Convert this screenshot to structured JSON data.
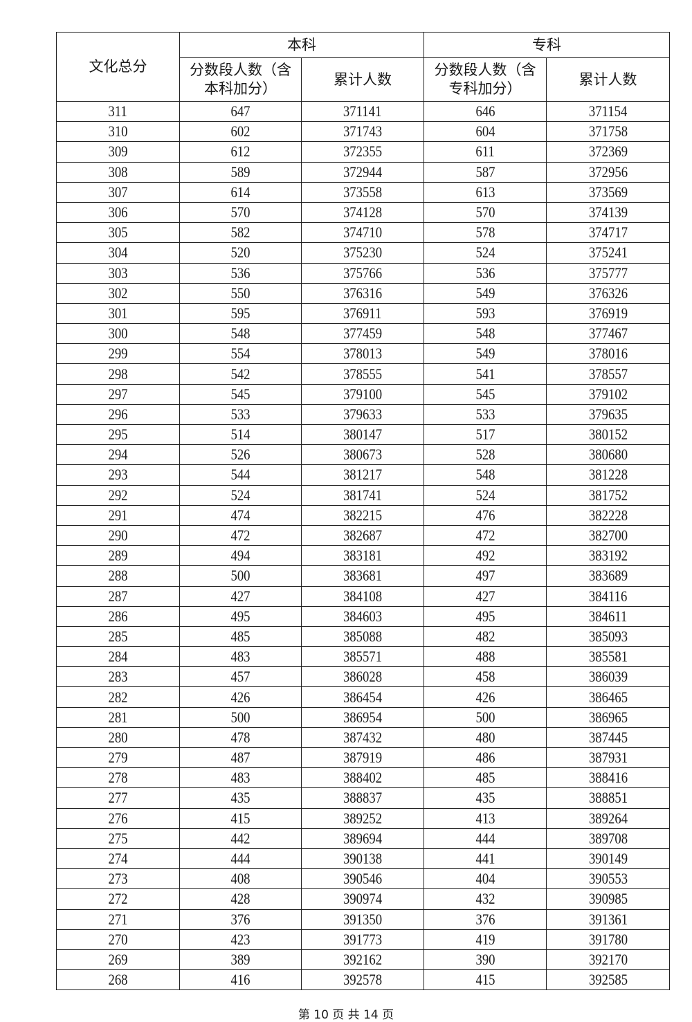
{
  "header": {
    "score_col": "文化总分",
    "group_undergrad": "本科",
    "group_junior": "专科",
    "undergrad_segment": "分数段人数（含本科加分）",
    "undergrad_cumulative": "累计人数",
    "junior_segment": "分数段人数（含专科加分）",
    "junior_cumulative": "累计人数"
  },
  "rows": [
    [
      "311",
      "647",
      "371141",
      "646",
      "371154"
    ],
    [
      "310",
      "602",
      "371743",
      "604",
      "371758"
    ],
    [
      "309",
      "612",
      "372355",
      "611",
      "372369"
    ],
    [
      "308",
      "589",
      "372944",
      "587",
      "372956"
    ],
    [
      "307",
      "614",
      "373558",
      "613",
      "373569"
    ],
    [
      "306",
      "570",
      "374128",
      "570",
      "374139"
    ],
    [
      "305",
      "582",
      "374710",
      "578",
      "374717"
    ],
    [
      "304",
      "520",
      "375230",
      "524",
      "375241"
    ],
    [
      "303",
      "536",
      "375766",
      "536",
      "375777"
    ],
    [
      "302",
      "550",
      "376316",
      "549",
      "376326"
    ],
    [
      "301",
      "595",
      "376911",
      "593",
      "376919"
    ],
    [
      "300",
      "548",
      "377459",
      "548",
      "377467"
    ],
    [
      "299",
      "554",
      "378013",
      "549",
      "378016"
    ],
    [
      "298",
      "542",
      "378555",
      "541",
      "378557"
    ],
    [
      "297",
      "545",
      "379100",
      "545",
      "379102"
    ],
    [
      "296",
      "533",
      "379633",
      "533",
      "379635"
    ],
    [
      "295",
      "514",
      "380147",
      "517",
      "380152"
    ],
    [
      "294",
      "526",
      "380673",
      "528",
      "380680"
    ],
    [
      "293",
      "544",
      "381217",
      "548",
      "381228"
    ],
    [
      "292",
      "524",
      "381741",
      "524",
      "381752"
    ],
    [
      "291",
      "474",
      "382215",
      "476",
      "382228"
    ],
    [
      "290",
      "472",
      "382687",
      "472",
      "382700"
    ],
    [
      "289",
      "494",
      "383181",
      "492",
      "383192"
    ],
    [
      "288",
      "500",
      "383681",
      "497",
      "383689"
    ],
    [
      "287",
      "427",
      "384108",
      "427",
      "384116"
    ],
    [
      "286",
      "495",
      "384603",
      "495",
      "384611"
    ],
    [
      "285",
      "485",
      "385088",
      "482",
      "385093"
    ],
    [
      "284",
      "483",
      "385571",
      "488",
      "385581"
    ],
    [
      "283",
      "457",
      "386028",
      "458",
      "386039"
    ],
    [
      "282",
      "426",
      "386454",
      "426",
      "386465"
    ],
    [
      "281",
      "500",
      "386954",
      "500",
      "386965"
    ],
    [
      "280",
      "478",
      "387432",
      "480",
      "387445"
    ],
    [
      "279",
      "487",
      "387919",
      "486",
      "387931"
    ],
    [
      "278",
      "483",
      "388402",
      "485",
      "388416"
    ],
    [
      "277",
      "435",
      "388837",
      "435",
      "388851"
    ],
    [
      "276",
      "415",
      "389252",
      "413",
      "389264"
    ],
    [
      "275",
      "442",
      "389694",
      "444",
      "389708"
    ],
    [
      "274",
      "444",
      "390138",
      "441",
      "390149"
    ],
    [
      "273",
      "408",
      "390546",
      "404",
      "390553"
    ],
    [
      "272",
      "428",
      "390974",
      "432",
      "390985"
    ],
    [
      "271",
      "376",
      "391350",
      "376",
      "391361"
    ],
    [
      "270",
      "423",
      "391773",
      "419",
      "391780"
    ],
    [
      "269",
      "389",
      "392162",
      "390",
      "392170"
    ],
    [
      "268",
      "416",
      "392578",
      "415",
      "392585"
    ]
  ],
  "footer": "第 10 页   共 14 页"
}
